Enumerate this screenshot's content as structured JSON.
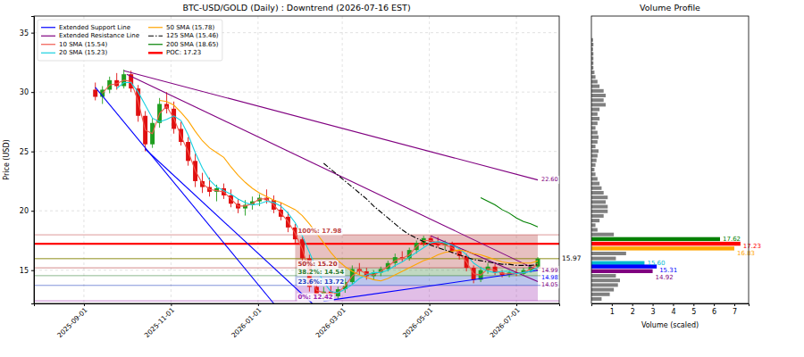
{
  "chart_data": {
    "type": "candlestick",
    "title": "BTC-USD/GOLD (Daily) : Downtrend (2026-07-16 EST)",
    "y_label": "Price (USD)",
    "x": [
      "2025-09-09",
      "2025-09-14",
      "2025-09-19",
      "2025-09-24",
      "2025-09-29",
      "2025-10-04",
      "2025-10-09",
      "2025-10-14",
      "2025-10-19",
      "2025-10-24",
      "2025-10-29",
      "2025-11-03",
      "2025-11-08",
      "2025-11-13",
      "2025-11-18",
      "2025-11-23",
      "2025-11-28",
      "2025-12-03",
      "2025-12-08",
      "2025-12-13",
      "2025-12-18",
      "2025-12-23",
      "2025-12-28",
      "2026-01-02",
      "2026-01-07",
      "2026-01-12",
      "2026-01-17",
      "2026-01-22",
      "2026-01-27",
      "2026-02-01",
      "2026-02-06",
      "2026-02-11",
      "2026-02-16",
      "2026-02-21",
      "2026-02-26",
      "2026-03-03",
      "2026-03-08",
      "2026-03-13",
      "2026-03-18",
      "2026-03-23",
      "2026-03-28",
      "2026-04-02",
      "2026-04-07",
      "2026-04-12",
      "2026-04-17",
      "2026-04-22",
      "2026-04-27",
      "2026-05-02",
      "2026-05-07",
      "2026-05-12",
      "2026-05-17",
      "2026-05-22",
      "2026-05-27",
      "2026-06-01",
      "2026-06-06",
      "2026-06-11",
      "2026-06-16",
      "2026-06-21",
      "2026-06-26",
      "2026-07-01",
      "2026-07-06",
      "2026-07-11",
      "2026-07-16"
    ],
    "xlim": [
      "2025-07-28",
      "2026-07-31"
    ],
    "xticks": [
      "2025-09-01",
      "2025-11-01",
      "2026-01-01",
      "2026-03-01",
      "2026-05-01",
      "2026-07-01"
    ],
    "ylim": [
      12.2,
      36.4
    ],
    "yticks": [
      15,
      20,
      25,
      30,
      35
    ],
    "grid": true,
    "legend": "upper left",
    "ohlc": {
      "open": [
        30.2,
        29.6,
        30.2,
        31.0,
        30.5,
        31.5,
        30.3,
        28.0,
        25.6,
        27.4,
        29.0,
        28.6,
        26.9,
        25.8,
        24.2,
        22.5,
        22.0,
        21.6,
        21.9,
        21.3,
        20.6,
        20.2,
        20.5,
        20.8,
        21.1,
        20.9,
        20.1,
        19.5,
        18.6,
        17.6,
        16.0,
        13.6,
        13.0,
        13.2,
        12.8,
        13.4,
        14.0,
        15.1,
        14.9,
        14.5,
        14.8,
        15.1,
        15.6,
        16.1,
        16.0,
        16.7,
        17.3,
        17.7,
        17.4,
        17.1,
        17.2,
        16.6,
        16.2,
        15.2,
        14.2,
        15.0,
        15.3,
        14.8,
        14.6,
        14.8,
        14.7,
        15.0,
        15.3
      ],
      "high": [
        30.8,
        30.5,
        31.3,
        31.6,
        31.9,
        31.8,
        30.6,
        28.4,
        27.8,
        29.5,
        30.0,
        29.2,
        27.5,
        26.2,
        24.8,
        23.2,
        22.8,
        22.2,
        22.3,
        21.8,
        21.0,
        20.9,
        21.2,
        21.4,
        21.8,
        21.3,
        20.7,
        19.9,
        18.9,
        17.8,
        16.3,
        14.2,
        13.6,
        13.7,
        13.6,
        14.3,
        15.4,
        15.6,
        15.2,
        15.0,
        15.3,
        15.8,
        16.4,
        16.6,
        16.9,
        17.5,
        17.9,
        17.9,
        17.8,
        17.5,
        17.4,
        16.9,
        16.4,
        15.4,
        15.3,
        15.6,
        15.5,
        15.0,
        15.0,
        15.1,
        15.2,
        15.4,
        16.1
      ],
      "low": [
        29.3,
        29.0,
        29.9,
        30.2,
        30.3,
        30.0,
        27.5,
        25.0,
        25.3,
        27.0,
        28.2,
        26.5,
        25.5,
        23.8,
        22.0,
        21.5,
        21.2,
        20.8,
        21.0,
        20.3,
        19.8,
        19.6,
        20.1,
        20.4,
        20.6,
        19.8,
        19.2,
        18.2,
        17.2,
        15.6,
        13.2,
        12.7,
        12.4,
        12.5,
        12.6,
        13.1,
        13.8,
        14.6,
        14.2,
        14.2,
        14.5,
        14.9,
        15.3,
        15.7,
        15.8,
        16.4,
        17.0,
        17.1,
        16.9,
        16.7,
        16.4,
        15.9,
        14.9,
        13.9,
        14.0,
        14.7,
        14.6,
        14.4,
        14.4,
        14.5,
        14.6,
        14.8,
        15.2
      ],
      "close": [
        29.6,
        30.2,
        31.0,
        30.5,
        31.5,
        30.3,
        28.0,
        25.6,
        27.4,
        29.0,
        28.6,
        26.9,
        25.8,
        24.2,
        22.5,
        22.0,
        21.6,
        21.9,
        21.3,
        20.6,
        20.2,
        20.5,
        20.8,
        21.1,
        20.9,
        20.1,
        19.5,
        18.6,
        17.6,
        16.0,
        13.6,
        13.0,
        13.2,
        12.8,
        13.4,
        14.0,
        15.1,
        14.9,
        14.5,
        14.8,
        15.1,
        15.6,
        16.1,
        16.0,
        16.7,
        17.3,
        17.7,
        17.4,
        17.1,
        17.2,
        16.6,
        16.2,
        15.2,
        14.2,
        15.0,
        15.3,
        14.8,
        14.6,
        14.8,
        14.7,
        15.0,
        15.3,
        15.97
      ]
    },
    "series": [
      {
        "name": "10 SMA (15.54)",
        "color": "#f05a4f",
        "line_style": "solid",
        "values": [
          null,
          29.9,
          30.6,
          30.7,
          31.0,
          30.9,
          29.2,
          26.8,
          26.5,
          28.2,
          28.8,
          27.8,
          26.3,
          25.0,
          23.4,
          22.3,
          21.8,
          21.7,
          21.6,
          21.0,
          20.4,
          20.4,
          20.6,
          21.0,
          21.0,
          20.5,
          19.8,
          19.1,
          18.1,
          16.8,
          14.8,
          13.3,
          13.1,
          13.0,
          13.1,
          13.7,
          14.5,
          15.0,
          14.7,
          14.6,
          14.9,
          15.3,
          15.8,
          16.0,
          16.3,
          17.0,
          17.5,
          17.5,
          17.3,
          17.1,
          16.9,
          16.4,
          15.7,
          14.7,
          14.6,
          15.1,
          15.0,
          14.7,
          14.7,
          14.7,
          14.8,
          15.1,
          15.54
        ]
      },
      {
        "name": "20 SMA (15.23)",
        "color": "#17d0e0",
        "line_style": "solid",
        "values": [
          null,
          null,
          null,
          30.3,
          30.8,
          30.8,
          30.0,
          28.9,
          27.8,
          27.5,
          27.7,
          28.0,
          27.6,
          26.4,
          24.9,
          23.6,
          22.6,
          22.0,
          21.7,
          21.4,
          21.0,
          20.7,
          20.5,
          20.6,
          20.8,
          20.7,
          20.4,
          19.8,
          19.0,
          17.9,
          16.5,
          15.1,
          14.0,
          13.2,
          13.1,
          13.4,
          13.8,
          14.3,
          14.6,
          14.8,
          14.8,
          15.0,
          15.4,
          15.7,
          16.1,
          16.5,
          16.9,
          17.3,
          17.4,
          17.3,
          17.1,
          16.8,
          16.3,
          15.6,
          15.2,
          14.9,
          14.8,
          14.9,
          14.9,
          14.7,
          14.8,
          14.9,
          15.23
        ]
      },
      {
        "name": "50 SMA (15.78)",
        "color": "orange",
        "line_style": "solid",
        "values": [
          null,
          null,
          null,
          null,
          null,
          null,
          null,
          null,
          null,
          29.3,
          29.2,
          28.9,
          28.3,
          27.6,
          26.7,
          25.9,
          25.3,
          24.9,
          24.5,
          23.7,
          23.0,
          22.4,
          21.9,
          21.5,
          21.2,
          20.9,
          20.7,
          20.4,
          20.1,
          19.6,
          18.9,
          18.1,
          17.3,
          16.5,
          15.8,
          15.3,
          14.9,
          14.6,
          14.4,
          14.2,
          14.1,
          14.3,
          14.6,
          14.9,
          15.2,
          15.5,
          15.8,
          16.0,
          16.3,
          16.5,
          16.6,
          16.7,
          16.6,
          16.4,
          16.3,
          16.1,
          15.9,
          15.7,
          15.6,
          15.6,
          15.6,
          15.6,
          15.78
        ]
      },
      {
        "name": "125 SMA (15.46)",
        "color": "black",
        "line_style": "dashdot",
        "values": [
          null,
          null,
          null,
          null,
          null,
          null,
          null,
          null,
          null,
          null,
          null,
          null,
          null,
          null,
          null,
          null,
          null,
          null,
          null,
          null,
          null,
          null,
          null,
          null,
          null,
          null,
          null,
          null,
          null,
          null,
          null,
          null,
          24.0,
          23.5,
          23.0,
          22.5,
          22.0,
          21.5,
          21.0,
          20.4,
          19.9,
          19.4,
          18.9,
          18.4,
          18.0,
          17.7,
          17.4,
          17.1,
          16.9,
          16.7,
          16.5,
          16.3,
          16.1,
          15.9,
          15.8,
          15.7,
          15.6,
          15.5,
          15.5,
          15.4,
          15.4,
          15.4,
          15.46
        ]
      },
      {
        "name": "200 SMA (18.65)",
        "color": "green",
        "line_style": "solid",
        "values": [
          null,
          null,
          null,
          null,
          null,
          null,
          null,
          null,
          null,
          null,
          null,
          null,
          null,
          null,
          null,
          null,
          null,
          null,
          null,
          null,
          null,
          null,
          null,
          null,
          null,
          null,
          null,
          null,
          null,
          null,
          null,
          null,
          null,
          null,
          null,
          null,
          null,
          null,
          null,
          null,
          null,
          null,
          null,
          null,
          null,
          null,
          null,
          null,
          null,
          null,
          null,
          null,
          null,
          null,
          21.1,
          20.8,
          20.5,
          20.1,
          19.8,
          19.4,
          19.1,
          18.9,
          18.65
        ]
      }
    ],
    "support_lines": {
      "name": "Extended Support Line",
      "color": "blue",
      "lines": [
        {
          "x": [
            "2025-09-09",
            "2026-01-12"
          ],
          "y": [
            30.4,
            12.2
          ]
        },
        {
          "x": [
            "2025-10-14",
            "2026-02-08"
          ],
          "y": [
            25.2,
            12.2
          ]
        },
        {
          "x": [
            "2026-02-16",
            "2026-07-16"
          ],
          "y": [
            12.4,
            14.98
          ],
          "end_label": "14.98"
        }
      ]
    },
    "resistance_lines": {
      "name": "Extended Resistance Line",
      "color": "purple",
      "lines": [
        {
          "x": [
            "2025-09-29",
            "2026-07-16"
          ],
          "y": [
            31.8,
            22.6
          ],
          "end_label": "22.60"
        },
        {
          "x": [
            "2025-10-01",
            "2026-07-16"
          ],
          "y": [
            31.5,
            14.99
          ],
          "end_label": "14.99"
        },
        {
          "x": [
            "2026-05-02",
            "2026-07-16"
          ],
          "y": [
            17.9,
            14.05
          ],
          "end_label": "14.05"
        }
      ]
    },
    "poc": {
      "name": "POC: 17.23",
      "value": 17.23,
      "color": "red"
    },
    "last_price": {
      "label": "15.97",
      "value": 15.97,
      "color": "olive"
    },
    "fibonacci": {
      "x": [
        "2026-01-27",
        "2026-07-16"
      ],
      "levels": [
        {
          "label": "100%: 17.98",
          "value": 17.98,
          "color": "#c04848"
        },
        {
          "label": "50%: 15.20",
          "value": 15.2,
          "color": "#b03030"
        },
        {
          "label": "38.2%: 14.54",
          "value": 14.54,
          "color": "#2e7d32"
        },
        {
          "label": "23.6%: 13.72",
          "value": 13.72,
          "color": "#1f3fbf"
        },
        {
          "label": "0%: 12.42",
          "value": 12.42,
          "color": "#9c27b0"
        }
      ]
    },
    "volume_profile": {
      "title": "Volume Profile",
      "x_label": "Volume (scaled)",
      "xlim": [
        0,
        7.7
      ],
      "xticks": [
        1,
        2,
        3,
        4,
        5,
        6,
        7
      ],
      "bars": {
        "color": "gray",
        "levels": [
          12.58,
          12.97,
          13.36,
          13.75,
          14.14,
          14.53,
          15.99,
          16.41,
          18.01,
          18.4,
          18.79,
          19.18,
          19.57,
          19.96,
          20.35,
          20.74,
          21.13,
          21.52,
          21.91,
          22.3,
          22.69,
          23.08,
          23.47,
          23.86,
          24.25,
          24.64,
          25.03,
          25.42,
          25.81,
          26.2,
          26.59,
          26.98,
          27.37,
          27.76,
          28.15,
          28.54,
          28.93,
          29.32,
          29.71,
          30.1,
          30.49,
          30.88,
          31.27,
          31.66,
          32.05,
          32.44,
          32.83,
          33.22,
          33.61,
          34.0,
          34.39
        ],
        "values": [
          0.5,
          0.9,
          1.1,
          1.3,
          1.4,
          1.2,
          1.2,
          1.7,
          1.1,
          0.3,
          0.2,
          0.4,
          0.6,
          0.8,
          0.8,
          0.7,
          0.8,
          0.6,
          0.5,
          0.4,
          0.3,
          0.2,
          0.15,
          0.2,
          0.25,
          0.3,
          0.35,
          0.2,
          0.3,
          0.35,
          0.3,
          0.2,
          0.3,
          0.4,
          0.3,
          0.4,
          0.7,
          0.6,
          0.7,
          0.6,
          0.4,
          0.3,
          0.2,
          0.15,
          0.1,
          0.1,
          0.1,
          0.1,
          0.08,
          0.1,
          0.08
        ]
      },
      "highlights": [
        {
          "level": 17.62,
          "label": "17.62",
          "value": 6.3,
          "color": "green"
        },
        {
          "level": 17.23,
          "label": "17.23",
          "value": 7.3,
          "color": "red"
        },
        {
          "level": 16.83,
          "label": "16.83",
          "value": 7.0,
          "color": "orange"
        },
        {
          "level": 15.6,
          "label": "15.60",
          "value": 2.6,
          "color": "#00b8d0"
        },
        {
          "level": 15.31,
          "label": "15.31",
          "value": 3.2,
          "color": "blue"
        },
        {
          "level": 14.92,
          "label": "14.92",
          "value": 3.0,
          "color": "purple"
        }
      ]
    }
  }
}
